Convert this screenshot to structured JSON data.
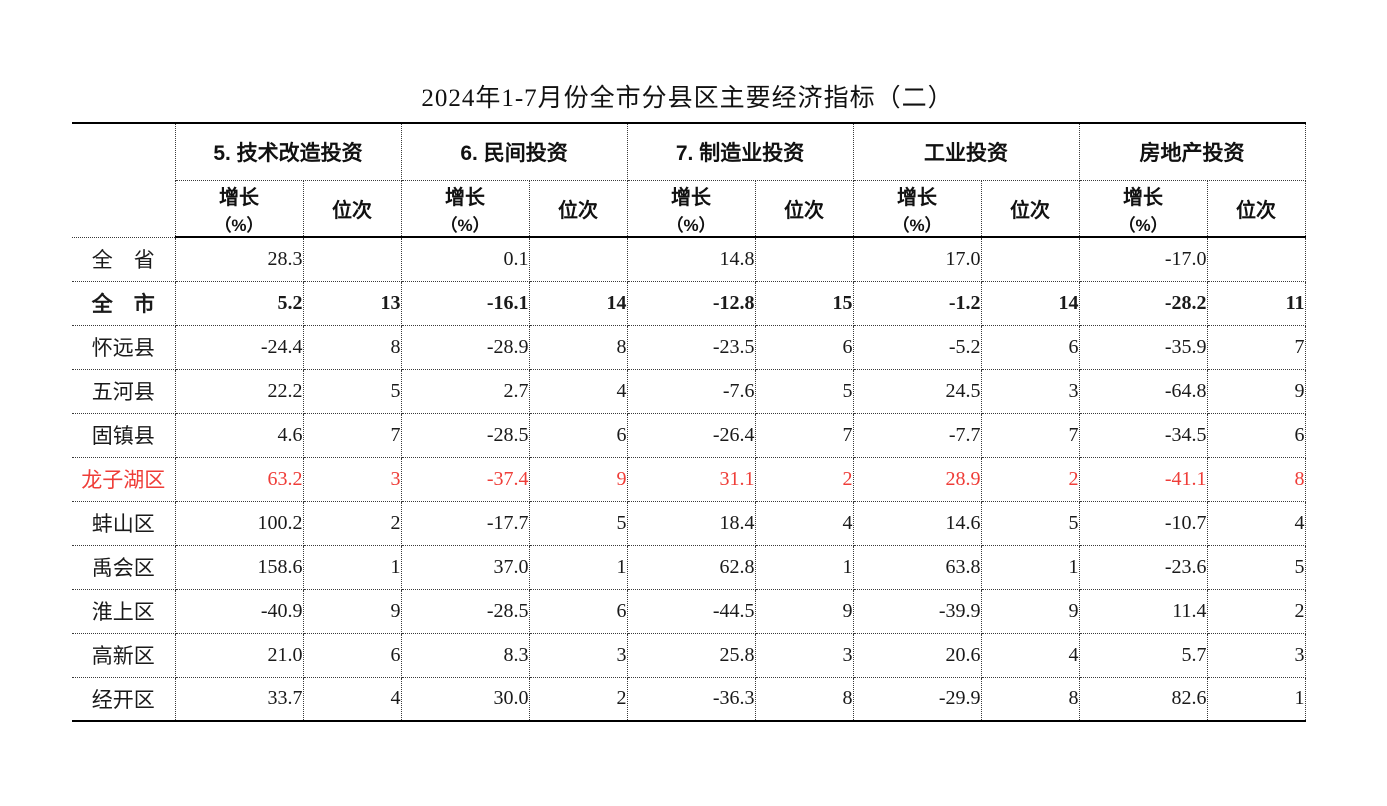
{
  "title": "2024年1-7月份全市分县区主要经济指标（二）",
  "colors": {
    "highlight_red": "#ef3d38",
    "text": "#1a1a1a",
    "border": "#000000"
  },
  "table": {
    "groups": [
      {
        "label": "5. 技术改造投资"
      },
      {
        "label": "6. 民间投资"
      },
      {
        "label": "7. 制造业投资"
      },
      {
        "label": "工业投资"
      },
      {
        "label": "房地产投资"
      }
    ],
    "sub_headers": {
      "growth_line1": "增长",
      "growth_line2": "（%）",
      "rank": "位次"
    },
    "rows": [
      {
        "name": "全　省",
        "style": "normal",
        "values": [
          "28.3",
          "",
          "0.1",
          "",
          "14.8",
          "",
          "17.0",
          "",
          "-17.0",
          ""
        ]
      },
      {
        "name": "全　市",
        "style": "bold",
        "values": [
          "5.2",
          "13",
          "-16.1",
          "14",
          "-12.8",
          "15",
          "-1.2",
          "14",
          "-28.2",
          "11"
        ]
      },
      {
        "name": "怀远县",
        "style": "normal",
        "values": [
          "-24.4",
          "8",
          "-28.9",
          "8",
          "-23.5",
          "6",
          "-5.2",
          "6",
          "-35.9",
          "7"
        ]
      },
      {
        "name": "五河县",
        "style": "normal",
        "values": [
          "22.2",
          "5",
          "2.7",
          "4",
          "-7.6",
          "5",
          "24.5",
          "3",
          "-64.8",
          "9"
        ]
      },
      {
        "name": "固镇县",
        "style": "normal",
        "values": [
          "4.6",
          "7",
          "-28.5",
          "6",
          "-26.4",
          "7",
          "-7.7",
          "7",
          "-34.5",
          "6"
        ]
      },
      {
        "name": "龙子湖区",
        "style": "red",
        "values": [
          "63.2",
          "3",
          "-37.4",
          "9",
          "31.1",
          "2",
          "28.9",
          "2",
          "-41.1",
          "8"
        ]
      },
      {
        "name": "蚌山区",
        "style": "normal",
        "values": [
          "100.2",
          "2",
          "-17.7",
          "5",
          "18.4",
          "4",
          "14.6",
          "5",
          "-10.7",
          "4"
        ]
      },
      {
        "name": "禹会区",
        "style": "normal",
        "values": [
          "158.6",
          "1",
          "37.0",
          "1",
          "62.8",
          "1",
          "63.8",
          "1",
          "-23.6",
          "5"
        ]
      },
      {
        "name": "淮上区",
        "style": "normal",
        "values": [
          "-40.9",
          "9",
          "-28.5",
          "6",
          "-44.5",
          "9",
          "-39.9",
          "9",
          "11.4",
          "2"
        ]
      },
      {
        "name": "高新区",
        "style": "normal",
        "values": [
          "21.0",
          "6",
          "8.3",
          "3",
          "25.8",
          "3",
          "20.6",
          "4",
          "5.7",
          "3"
        ]
      },
      {
        "name": "经开区",
        "style": "normal",
        "values": [
          "33.7",
          "4",
          "30.0",
          "2",
          "-36.3",
          "8",
          "-29.9",
          "8",
          "82.6",
          "1"
        ]
      }
    ]
  }
}
